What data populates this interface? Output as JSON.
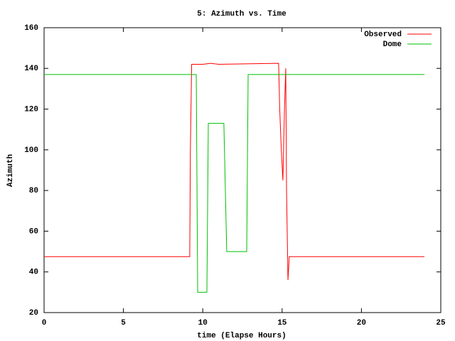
{
  "chart_data": {
    "type": "line",
    "title": "5: Azimuth vs. Time",
    "x_label": "time (Elapse Hours)",
    "y_label": "Azimuth",
    "xlim": [
      0,
      25
    ],
    "xticks": [
      0,
      5,
      10,
      15,
      20,
      25
    ],
    "ylim": [
      20,
      160
    ],
    "yticks": [
      20,
      40,
      60,
      80,
      100,
      120,
      140,
      160
    ],
    "legend": "top-right",
    "series": [
      {
        "name": "Observed",
        "color": "#ff0000",
        "x": [
          0,
          9.18,
          9.22,
          9.3,
          10,
          10.5,
          11,
          14.78,
          14.85,
          14.95,
          15.05,
          15.15,
          15.23,
          15.28,
          15.37,
          15.45,
          23.97
        ],
        "values": [
          47.5,
          47.5,
          100,
          142,
          142,
          142.5,
          142,
          142.5,
          120,
          100,
          85,
          120,
          140,
          80,
          36,
          47.5,
          47.5
        ]
      },
      {
        "name": "Dome",
        "color": "#00c000",
        "x": [
          0,
          9.59,
          9.68,
          10.26,
          10.35,
          11.33,
          11.51,
          12.77,
          12.86,
          23.97
        ],
        "values": [
          137,
          137,
          30,
          30,
          113,
          113,
          50,
          50,
          137,
          137
        ]
      }
    ]
  }
}
